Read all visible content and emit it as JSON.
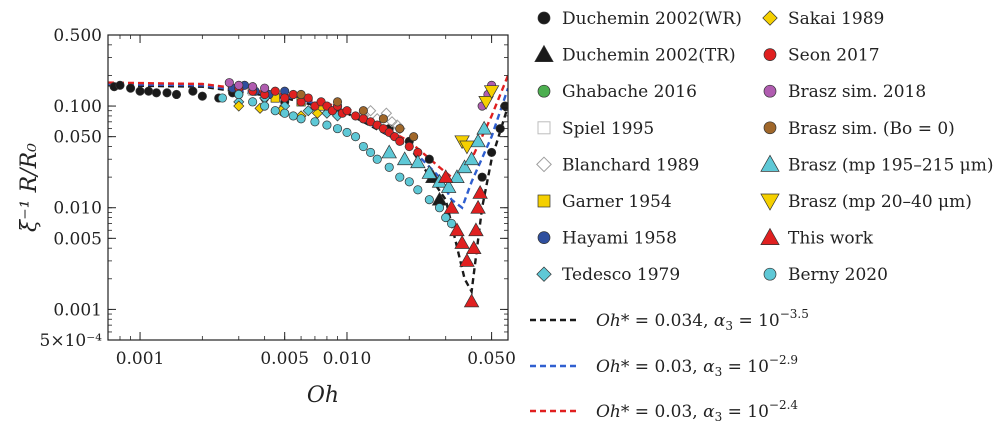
{
  "chart_data": {
    "type": "scatter",
    "xlabel": "Oh",
    "ylabel": "ξ⁻¹ R/R₀",
    "xscale": "log",
    "yscale": "log",
    "xlim": [
      0.0007,
      0.06
    ],
    "ylim": [
      0.0005,
      0.5
    ],
    "x_ticks": [
      {
        "value": 0.001,
        "label": "0.001"
      },
      {
        "value": 0.005,
        "label": "0.005"
      },
      {
        "value": 0.01,
        "label": "0.010"
      },
      {
        "value": 0.05,
        "label": "0.050"
      }
    ],
    "y_ticks": [
      {
        "value": 0.5,
        "label": "0.500"
      },
      {
        "value": 0.1,
        "label": "0.100"
      },
      {
        "value": 0.05,
        "label": "0.050"
      },
      {
        "value": 0.01,
        "label": "0.010"
      },
      {
        "value": 0.005,
        "label": "0.005"
      },
      {
        "value": 0.001,
        "label": "0.001"
      },
      {
        "value": 0.0005,
        "label": "5×10⁻⁴"
      }
    ],
    "series": [
      {
        "name": "Duchemin 2002(WR)",
        "marker": "circle",
        "color": "#1a1a1a",
        "points": [
          [
            0.00075,
            0.155
          ],
          [
            0.0008,
            0.16
          ],
          [
            0.0009,
            0.15
          ],
          [
            0.001,
            0.14
          ],
          [
            0.0011,
            0.14
          ],
          [
            0.0012,
            0.135
          ],
          [
            0.00135,
            0.135
          ],
          [
            0.0015,
            0.13
          ],
          [
            0.0018,
            0.14
          ],
          [
            0.002,
            0.125
          ],
          [
            0.0024,
            0.12
          ],
          [
            0.0028,
            0.135
          ],
          [
            0.003,
            0.13
          ],
          [
            0.004,
            0.12
          ],
          [
            0.005,
            0.11
          ],
          [
            0.007,
            0.1
          ],
          [
            0.009,
            0.09
          ],
          [
            0.012,
            0.075
          ],
          [
            0.016,
            0.06
          ],
          [
            0.02,
            0.045
          ],
          [
            0.025,
            0.03
          ],
          [
            0.045,
            0.02
          ],
          [
            0.05,
            0.035
          ],
          [
            0.055,
            0.06
          ],
          [
            0.058,
            0.1
          ]
        ]
      },
      {
        "name": "Duchemin 2002(TR)",
        "marker": "triangle",
        "color": "#1a1a1a",
        "points": [
          [
            0.026,
            0.02
          ],
          [
            0.028,
            0.012
          ]
        ]
      },
      {
        "name": "Ghabache 2016",
        "marker": "circle",
        "color": "#4caf50",
        "points": [
          [
            0.006,
            0.12
          ],
          [
            0.009,
            0.1
          ]
        ]
      },
      {
        "name": "Spiel 1995",
        "marker": "square-open",
        "color": "#bdbdbd",
        "points": [
          [
            0.0035,
            0.14
          ],
          [
            0.0045,
            0.13
          ]
        ]
      },
      {
        "name": "Blanchard 1989",
        "marker": "diamond-open",
        "color": "#9e9e9e",
        "points": [
          [
            0.012,
            0.08
          ],
          [
            0.013,
            0.09
          ],
          [
            0.014,
            0.075
          ],
          [
            0.0155,
            0.085
          ],
          [
            0.0165,
            0.07
          ],
          [
            0.0175,
            0.065
          ],
          [
            0.018,
            0.06
          ]
        ]
      },
      {
        "name": "Garner 1954",
        "marker": "square",
        "color": "#f5d000",
        "points": [
          [
            0.0045,
            0.12
          ],
          [
            0.006,
            0.11
          ],
          [
            0.0075,
            0.1
          ]
        ]
      },
      {
        "name": "Hayami 1958",
        "marker": "circle",
        "color": "#2f4f9e",
        "points": [
          [
            0.0028,
            0.15
          ],
          [
            0.0032,
            0.16
          ],
          [
            0.0036,
            0.14
          ],
          [
            0.0042,
            0.13
          ],
          [
            0.005,
            0.14
          ]
        ]
      },
      {
        "name": "Tedesco 1979",
        "marker": "diamond",
        "color": "#5ec8d6",
        "points": [
          [
            0.003,
            0.11
          ],
          [
            0.004,
            0.12
          ],
          [
            0.005,
            0.1
          ],
          [
            0.0065,
            0.09
          ],
          [
            0.008,
            0.085
          ],
          [
            0.009,
            0.08
          ]
        ]
      },
      {
        "name": "Sakai 1989",
        "marker": "diamond",
        "color": "#f5d000",
        "points": [
          [
            0.003,
            0.1
          ],
          [
            0.0038,
            0.095
          ],
          [
            0.0048,
            0.09
          ],
          [
            0.006,
            0.08
          ],
          [
            0.0072,
            0.085
          ]
        ]
      },
      {
        "name": "Seon 2017",
        "marker": "circle",
        "color": "#e02020",
        "points": [
          [
            0.003,
            0.15
          ],
          [
            0.0035,
            0.14
          ],
          [
            0.004,
            0.13
          ],
          [
            0.0045,
            0.14
          ],
          [
            0.005,
            0.12
          ],
          [
            0.0055,
            0.13
          ],
          [
            0.006,
            0.11
          ],
          [
            0.0065,
            0.12
          ],
          [
            0.007,
            0.1
          ],
          [
            0.0075,
            0.11
          ],
          [
            0.008,
            0.1
          ],
          [
            0.0085,
            0.09
          ],
          [
            0.009,
            0.1
          ],
          [
            0.0095,
            0.085
          ],
          [
            0.01,
            0.09
          ],
          [
            0.011,
            0.08
          ],
          [
            0.012,
            0.075
          ],
          [
            0.013,
            0.07
          ],
          [
            0.014,
            0.065
          ],
          [
            0.015,
            0.06
          ],
          [
            0.016,
            0.055
          ],
          [
            0.017,
            0.05
          ],
          [
            0.018,
            0.045
          ],
          [
            0.02,
            0.04
          ],
          [
            0.022,
            0.035
          ]
        ]
      },
      {
        "name": "Brasz sim. 2018",
        "marker": "circle",
        "color": "#b05cb0",
        "points": [
          [
            0.0027,
            0.17
          ],
          [
            0.003,
            0.16
          ],
          [
            0.0035,
            0.155
          ],
          [
            0.004,
            0.15
          ],
          [
            0.045,
            0.1
          ],
          [
            0.048,
            0.13
          ],
          [
            0.05,
            0.16
          ]
        ]
      },
      {
        "name": "Brasz sim. (Bo = 0)",
        "marker": "circle",
        "color": "#a0672a",
        "points": [
          [
            0.006,
            0.13
          ],
          [
            0.009,
            0.11
          ],
          [
            0.012,
            0.09
          ],
          [
            0.015,
            0.075
          ],
          [
            0.018,
            0.06
          ],
          [
            0.021,
            0.05
          ]
        ]
      },
      {
        "name": "Brasz (mp 195–215 μm)",
        "marker": "triangle",
        "color": "#5ec8d6",
        "points": [
          [
            0.016,
            0.035
          ],
          [
            0.019,
            0.03
          ],
          [
            0.022,
            0.028
          ],
          [
            0.025,
            0.022
          ],
          [
            0.028,
            0.018
          ],
          [
            0.031,
            0.016
          ],
          [
            0.034,
            0.02
          ],
          [
            0.037,
            0.025
          ],
          [
            0.04,
            0.03
          ],
          [
            0.043,
            0.045
          ],
          [
            0.046,
            0.06
          ]
        ]
      },
      {
        "name": "Brasz (mp 20–40 μm)",
        "marker": "triangle-down",
        "color": "#f5d000",
        "points": [
          [
            0.036,
            0.045
          ],
          [
            0.038,
            0.04
          ],
          [
            0.047,
            0.11
          ],
          [
            0.05,
            0.14
          ]
        ]
      },
      {
        "name": "This work",
        "marker": "triangle",
        "color": "#e02020",
        "points": [
          [
            0.03,
            0.02
          ],
          [
            0.032,
            0.01
          ],
          [
            0.034,
            0.006
          ],
          [
            0.036,
            0.0045
          ],
          [
            0.038,
            0.003
          ],
          [
            0.04,
            0.0012
          ],
          [
            0.041,
            0.004
          ],
          [
            0.042,
            0.006
          ],
          [
            0.043,
            0.01
          ],
          [
            0.044,
            0.014
          ]
        ]
      },
      {
        "name": "Berny 2020",
        "marker": "circle",
        "color": "#5ec8d6",
        "points": [
          [
            0.0025,
            0.12
          ],
          [
            0.003,
            0.13
          ],
          [
            0.0035,
            0.11
          ],
          [
            0.004,
            0.1
          ],
          [
            0.0045,
            0.09
          ],
          [
            0.005,
            0.085
          ],
          [
            0.0055,
            0.08
          ],
          [
            0.006,
            0.075
          ],
          [
            0.007,
            0.07
          ],
          [
            0.008,
            0.065
          ],
          [
            0.009,
            0.06
          ],
          [
            0.01,
            0.055
          ],
          [
            0.011,
            0.05
          ],
          [
            0.012,
            0.04
          ],
          [
            0.013,
            0.035
          ],
          [
            0.014,
            0.03
          ],
          [
            0.016,
            0.025
          ],
          [
            0.018,
            0.02
          ],
          [
            0.02,
            0.018
          ],
          [
            0.022,
            0.015
          ],
          [
            0.025,
            0.012
          ],
          [
            0.028,
            0.01
          ],
          [
            0.03,
            0.008
          ],
          [
            0.032,
            0.007
          ]
        ]
      }
    ],
    "fits": [
      {
        "label": "Oh* = 0.034, α₃ = 10⁻³·⁵",
        "oh_label": "Oh",
        "oh_val": "* = 0.034, ",
        "alpha_label": "α",
        "alpha_sub": "3",
        "alpha_eq": " = 10",
        "alpha_exp": "−3.5",
        "color": "#1a1a1a",
        "points": [
          [
            0.0007,
            0.16
          ],
          [
            0.002,
            0.155
          ],
          [
            0.005,
            0.12
          ],
          [
            0.01,
            0.085
          ],
          [
            0.02,
            0.04
          ],
          [
            0.03,
            0.012
          ],
          [
            0.037,
            0.002
          ],
          [
            0.04,
            0.0015
          ],
          [
            0.045,
            0.01
          ],
          [
            0.05,
            0.03
          ],
          [
            0.06,
            0.1
          ]
        ]
      },
      {
        "label": "Oh* = 0.03, α₃ = 10⁻²·⁹",
        "oh_label": "Oh",
        "oh_val": "* = 0.03, ",
        "alpha_label": "α",
        "alpha_sub": "3",
        "alpha_eq": " = 10",
        "alpha_exp": "−2.9",
        "color": "#2f5fd0",
        "points": [
          [
            0.0007,
            0.165
          ],
          [
            0.002,
            0.16
          ],
          [
            0.005,
            0.125
          ],
          [
            0.01,
            0.09
          ],
          [
            0.02,
            0.04
          ],
          [
            0.028,
            0.02
          ],
          [
            0.032,
            0.012
          ],
          [
            0.036,
            0.01
          ],
          [
            0.04,
            0.018
          ],
          [
            0.05,
            0.05
          ],
          [
            0.06,
            0.15
          ]
        ]
      },
      {
        "label": "Oh* = 0.03, α₃ = 10⁻²·⁴",
        "oh_label": "Oh",
        "oh_val": "* = 0.03, ",
        "alpha_label": "α",
        "alpha_sub": "3",
        "alpha_eq": " = 10",
        "alpha_exp": "−2.4",
        "color": "#e02020",
        "points": [
          [
            0.0007,
            0.17
          ],
          [
            0.002,
            0.165
          ],
          [
            0.005,
            0.13
          ],
          [
            0.01,
            0.095
          ],
          [
            0.02,
            0.045
          ],
          [
            0.028,
            0.025
          ],
          [
            0.032,
            0.02
          ],
          [
            0.036,
            0.022
          ],
          [
            0.04,
            0.03
          ],
          [
            0.05,
            0.08
          ],
          [
            0.06,
            0.2
          ]
        ]
      }
    ]
  }
}
